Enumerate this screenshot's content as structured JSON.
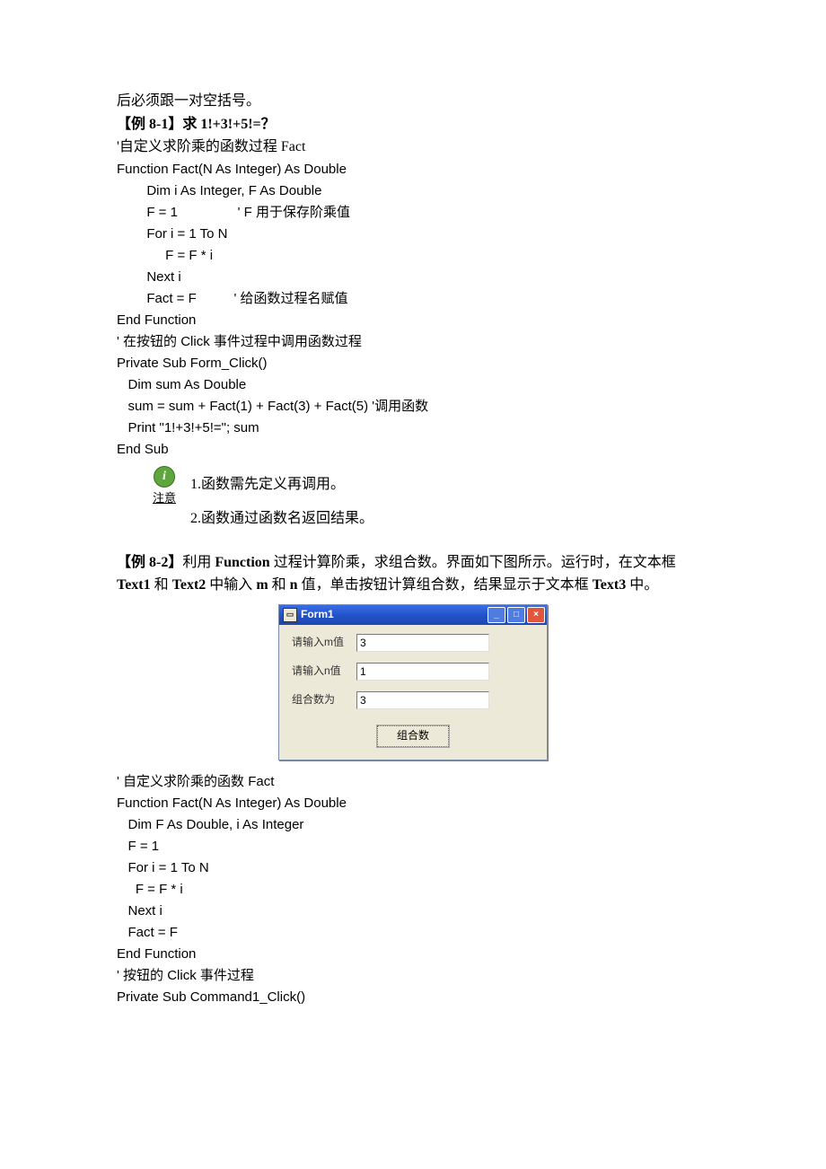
{
  "intro_line": "后必须跟一对空括号。",
  "ex81_title": "【例 8-1】求 1!+3!+5!=？",
  "ex81_comment": "'自定义求阶乘的函数过程 Fact",
  "code81": [
    "Function Fact(N As Integer) As Double",
    "        Dim i As Integer, F As Double",
    "        F = 1                ' F 用于保存阶乘值",
    "        For i = 1 To N",
    "             F = F * i",
    "        Next i",
    "        Fact = F          ' 给函数过程名赋值",
    "End Function",
    "' 在按钮的 Click 事件过程中调用函数过程",
    "Private Sub Form_Click()",
    "   Dim sum As Double",
    "   sum = sum + Fact(1) + Fact(3) + Fact(5) '调用函数",
    "   Print \"1!+3!+5!=\"; sum",
    "End Sub"
  ],
  "note_label": "注意",
  "note_line1": "1.函数需先定义再调用。",
  "note_line2": "2.函数通过函数名返回结果。",
  "ex82_part1": "【例 8-2】",
  "ex82_part2": "利用 ",
  "ex82_part3": "Function",
  "ex82_part4": " 过程计算阶乘，求组合数。界面如下图所示。运行时，在文本框 ",
  "ex82_part5": "Text1",
  "ex82_part6": " 和 ",
  "ex82_part7": "Text2",
  "ex82_part8": " 中输入 ",
  "ex82_part9": "m",
  "ex82_part10": " 和 ",
  "ex82_part11": "n",
  "ex82_part12": " 值，单击按钮计算组合数，结果显示于文本框 ",
  "ex82_part13": "Text3",
  "ex82_part14": " 中。",
  "window": {
    "title": "Form1",
    "label_m": "请输入m值",
    "label_n": "请输入n值",
    "label_result": "组合数为",
    "value_m": "3",
    "value_n": "1",
    "value_result": "3",
    "button_label": "组合数",
    "titlebar_bg": "#2353c9",
    "body_bg": "#ece9d8",
    "close_bg": "#e2563c"
  },
  "code82": [
    "' 自定义求阶乘的函数 Fact",
    "Function Fact(N As Integer) As Double",
    "   Dim F As Double, i As Integer",
    "   F = 1",
    "   For i = 1 To N",
    "     F = F * i",
    "   Next i",
    "   Fact = F",
    "End Function",
    "' 按钮的 Click 事件过程",
    "Private Sub Command1_Click()"
  ]
}
